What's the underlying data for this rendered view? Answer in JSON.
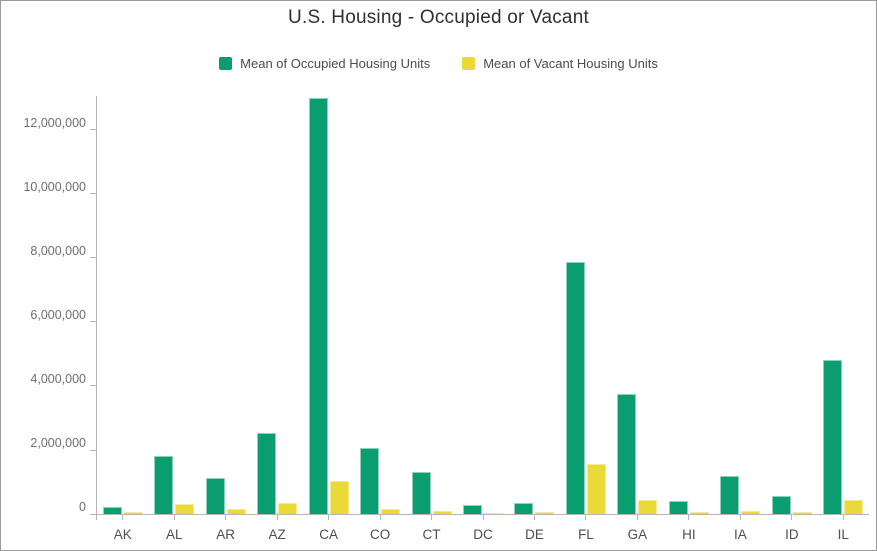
{
  "title": "U.S. Housing - Occupied or Vacant",
  "legend": [
    {
      "label": "Mean of Occupied Housing Units",
      "color": "#0a9d6f"
    },
    {
      "label": "Mean of Vacant Housing Units",
      "color": "#e9da3a"
    }
  ],
  "chart_data": {
    "type": "bar",
    "title": "U.S. Housing - Occupied or Vacant",
    "xlabel": "",
    "ylabel": "",
    "grid": false,
    "legend_position": "top",
    "categories": [
      "AK",
      "AL",
      "AR",
      "AZ",
      "CA",
      "CO",
      "CT",
      "DC",
      "DE",
      "FL",
      "GA",
      "HI",
      "IA",
      "ID",
      "IL"
    ],
    "series": [
      {
        "name": "Mean of Occupied Housing Units",
        "color": "#0a9d6f",
        "values": [
          220000,
          1820000,
          1130000,
          2540000,
          13010000,
          2060000,
          1310000,
          280000,
          330000,
          7870000,
          3740000,
          400000,
          1190000,
          560000,
          4800000
        ]
      },
      {
        "name": "Mean of Vacant Housing Units",
        "color": "#e9da3a",
        "values": [
          70000,
          320000,
          150000,
          350000,
          1030000,
          170000,
          95000,
          30000,
          55000,
          1550000,
          430000,
          55000,
          85000,
          55000,
          430000
        ]
      }
    ],
    "ylim": [
      0,
      13060000
    ],
    "yticks": [
      0,
      2000000,
      4000000,
      6000000,
      8000000,
      10000000,
      12000000
    ],
    "ytick_labels": [
      "0",
      "2,000,000",
      "4,000,000",
      "6,000,000",
      "8,000,000",
      "10,000,000",
      "12,000,000"
    ]
  }
}
